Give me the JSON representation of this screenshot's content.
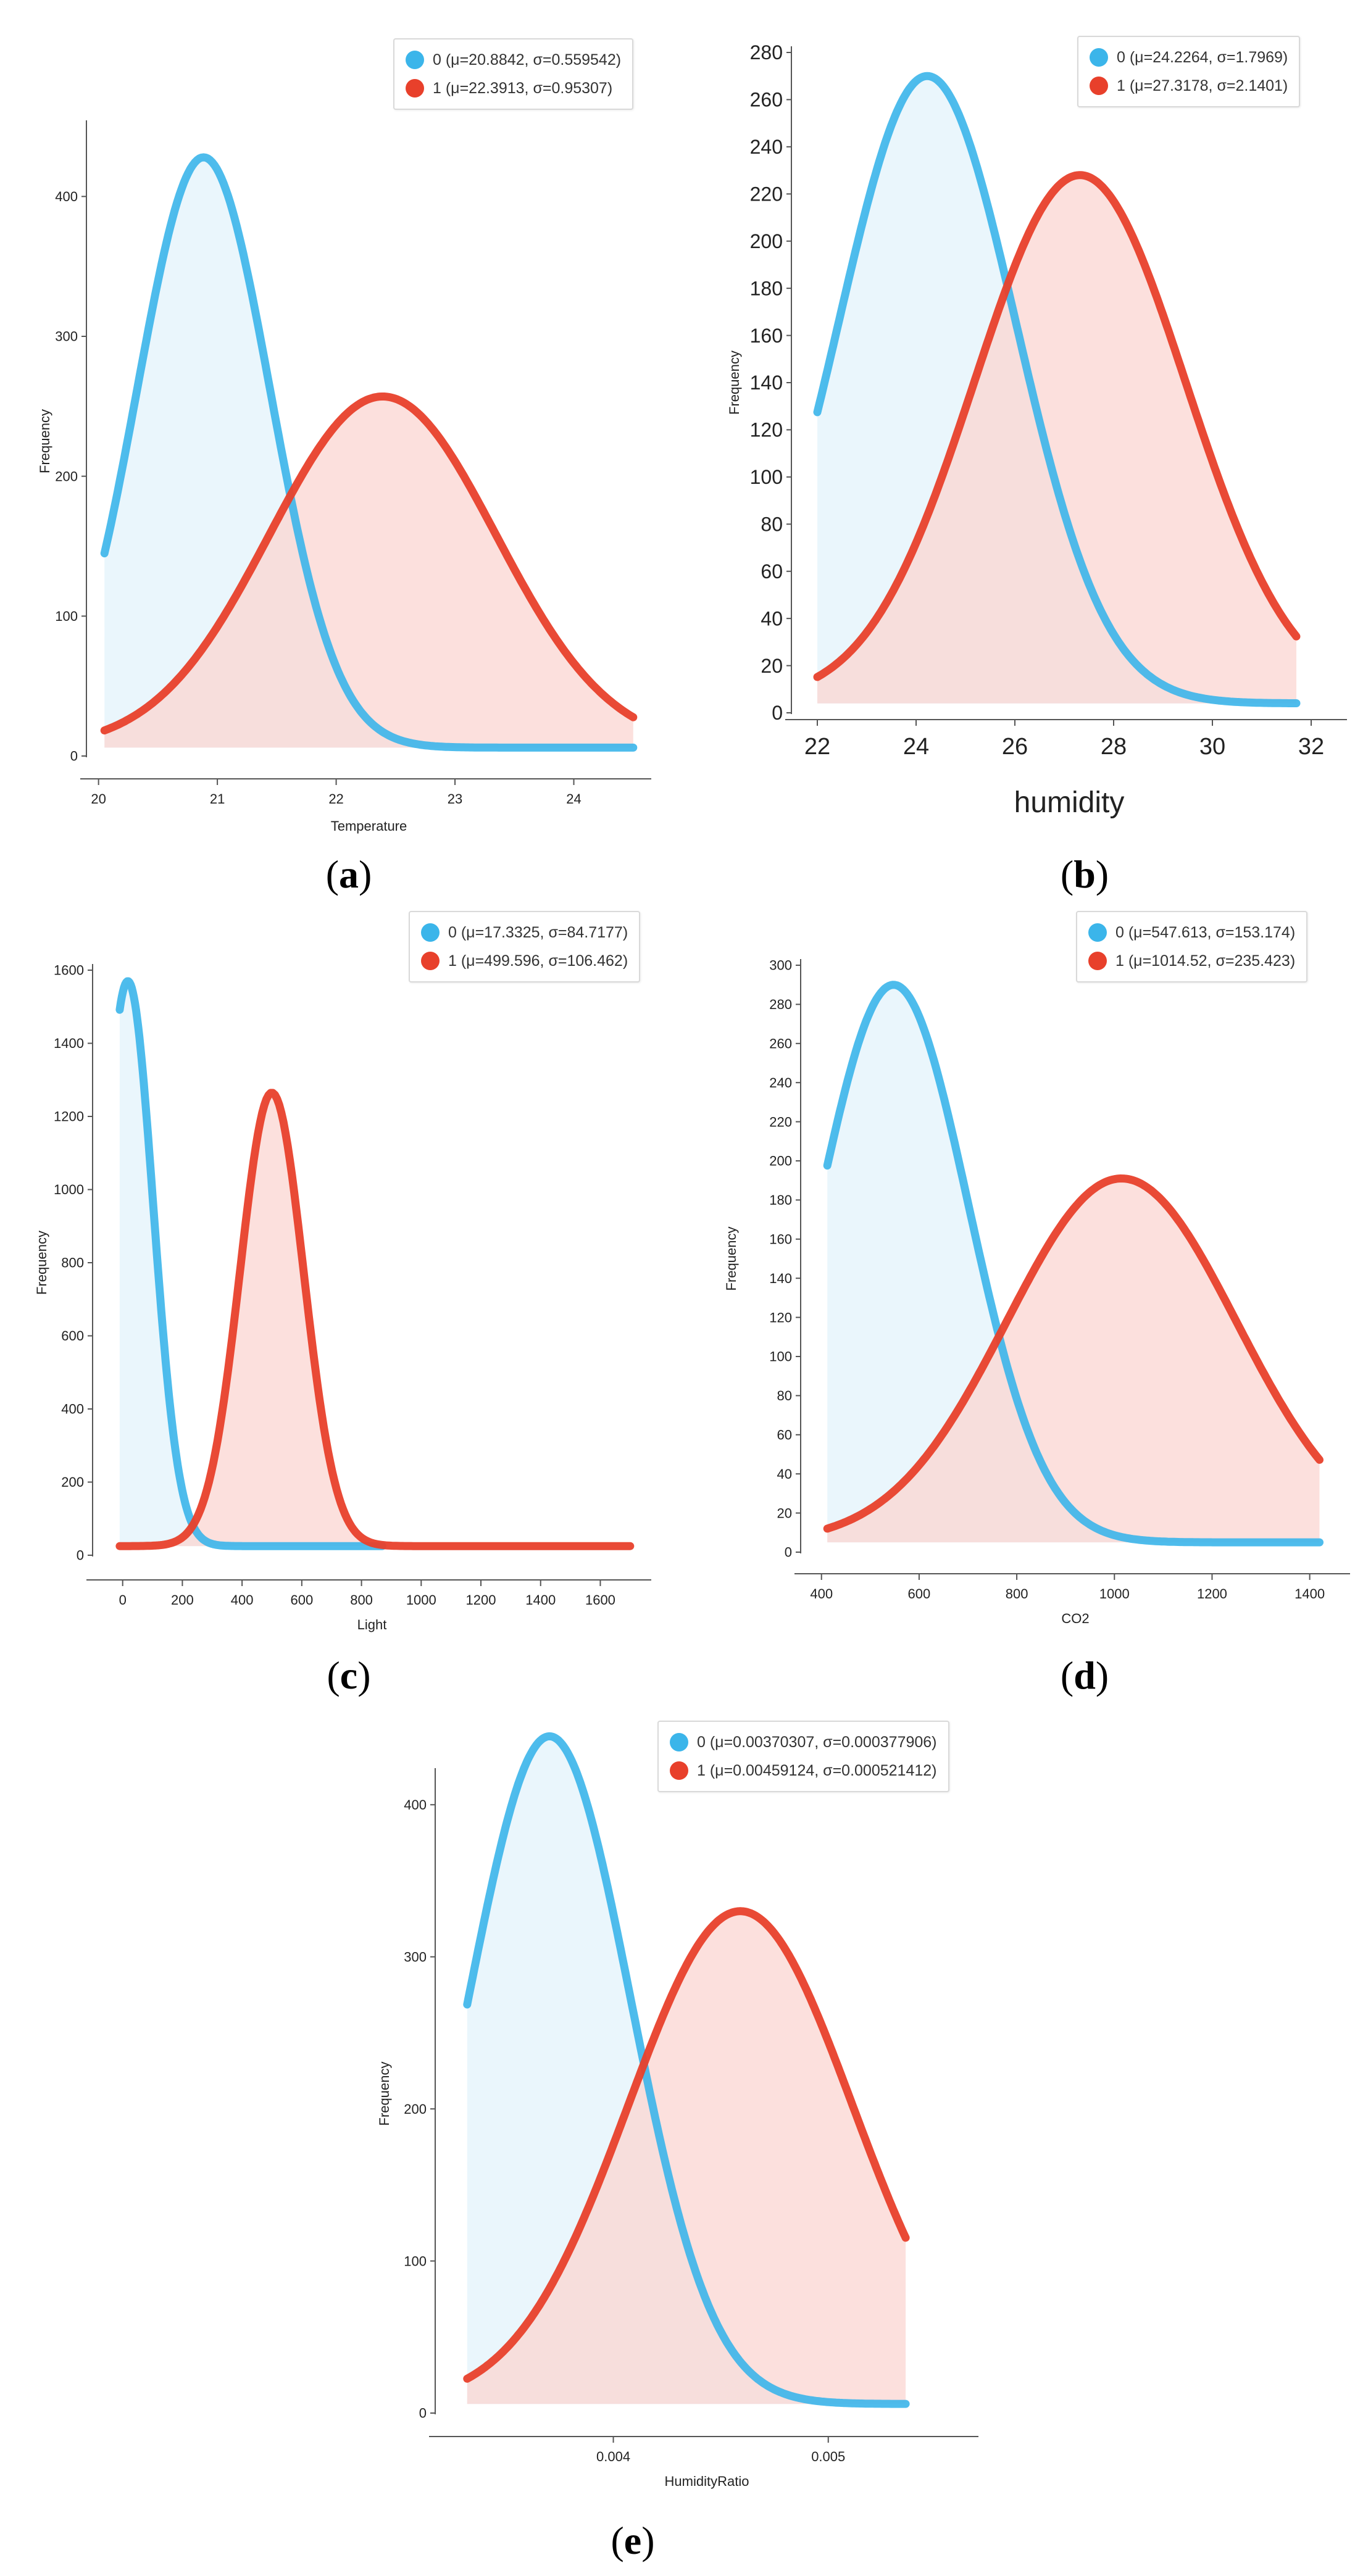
{
  "colors": {
    "class0": "#3bb5ea",
    "class1": "#e8402b",
    "fill0": "#e6f5fc",
    "fill1": "#fbd6d2"
  },
  "chart_data": [
    {
      "panel": "a",
      "type": "line",
      "xlabel": "Temperature",
      "ylabel": "Frequency",
      "xlim": [
        19.95,
        24.6
      ],
      "ylim": [
        0,
        450
      ],
      "xticks": [
        20,
        21,
        22,
        23,
        24
      ],
      "yticks": [
        0,
        100,
        200,
        300,
        400
      ],
      "series": [
        {
          "name": "0",
          "legend": "0 (μ=20.8842, σ=0.559542)",
          "mu": 20.8842,
          "sigma": 0.559542,
          "peak": 428,
          "floor": 6,
          "x_range": [
            20.05,
            24.5
          ]
        },
        {
          "name": "1",
          "legend": "1 (μ=22.3913, σ=0.95307)",
          "mu": 22.3913,
          "sigma": 0.95307,
          "peak": 257,
          "floor": 6,
          "x_range": [
            20.05,
            24.5
          ]
        }
      ]
    },
    {
      "panel": "b",
      "type": "line",
      "xlabel": "humidity",
      "ylabel": "Frequency",
      "xlim": [
        21.6,
        32.6
      ],
      "ylim": [
        0,
        280
      ],
      "xticks": [
        22,
        24,
        26,
        28,
        30,
        32
      ],
      "yticks": [
        0,
        20,
        40,
        60,
        80,
        100,
        120,
        140,
        160,
        180,
        200,
        220,
        240,
        260,
        280
      ],
      "series": [
        {
          "name": "0",
          "legend": "0 (μ=24.2264, σ=1.7969)",
          "mu": 24.2264,
          "sigma": 1.7969,
          "peak": 270,
          "floor": 4,
          "x_range": [
            22.0,
            31.7
          ]
        },
        {
          "name": "1",
          "legend": "1 (μ=27.3178, σ=2.1401)",
          "mu": 27.3178,
          "sigma": 2.1401,
          "peak": 228,
          "floor": 5,
          "x_range": [
            22.0,
            31.7
          ]
        }
      ]
    },
    {
      "panel": "c",
      "type": "line",
      "xlabel": "Light",
      "ylabel": "Frequency",
      "xlim": [
        -80,
        1750
      ],
      "ylim": [
        0,
        1600
      ],
      "xticks": [
        0,
        200,
        400,
        600,
        800,
        1000,
        1200,
        1400,
        1600
      ],
      "yticks": [
        0,
        200,
        400,
        600,
        800,
        1000,
        1200,
        1400,
        1600
      ],
      "series": [
        {
          "name": "0",
          "legend": "0 (μ=17.3325, σ=84.7177)",
          "mu": 17.3325,
          "sigma": 84.7177,
          "peak": 1570,
          "floor": 25,
          "x_range": [
            -10,
            870
          ]
        },
        {
          "name": "1",
          "legend": "1 (μ=499.596, σ=106.462)",
          "mu": 499.596,
          "sigma": 106.462,
          "peak": 1265,
          "floor": 25,
          "x_range": [
            -10,
            1700
          ]
        }
      ]
    },
    {
      "panel": "d",
      "type": "line",
      "xlabel": "CO2",
      "ylabel": "Frequency",
      "xlim": [
        370,
        1470
      ],
      "ylim": [
        0,
        300
      ],
      "xticks": [
        400,
        600,
        800,
        1000,
        1200,
        1400
      ],
      "yticks": [
        0,
        20,
        40,
        60,
        80,
        100,
        120,
        140,
        160,
        180,
        200,
        220,
        240,
        260,
        280,
        300
      ],
      "series": [
        {
          "name": "0",
          "legend": "0 (μ=547.613, σ=153.174)",
          "mu": 547.613,
          "sigma": 153.174,
          "peak": 290,
          "floor": 5,
          "x_range": [
            412,
            1420
          ]
        },
        {
          "name": "1",
          "legend": "1 (μ=1014.52, σ=235.423)",
          "mu": 1014.52,
          "sigma": 235.423,
          "peak": 191,
          "floor": 5,
          "x_range": [
            412,
            1420
          ]
        }
      ]
    },
    {
      "panel": "e",
      "type": "line",
      "xlabel": "HumidityRatio",
      "ylabel": "Frequency",
      "xlim": [
        0.0032,
        0.00567
      ],
      "ylim": [
        0,
        420
      ],
      "xticks": [
        0.004,
        0.005
      ],
      "yticks": [
        0,
        100,
        200,
        300,
        400
      ],
      "series": [
        {
          "name": "0",
          "legend": "0 (μ=0.00370307, σ=0.000377906)",
          "mu": 0.00370307,
          "sigma": 0.000377906,
          "peak": 445,
          "floor": 6,
          "x_range": [
            0.00332,
            0.00536
          ]
        },
        {
          "name": "1",
          "legend": "1 (μ=0.00459124, σ=0.000521412)",
          "mu": 0.00459124,
          "sigma": 0.000521412,
          "peak": 330,
          "floor": 6,
          "x_range": [
            0.00332,
            0.00536
          ]
        }
      ]
    }
  ],
  "panel_labels": [
    {
      "open": "(",
      "letter": "a",
      "close": ")"
    },
    {
      "open": "(",
      "letter": "b",
      "close": ")"
    },
    {
      "open": "(",
      "letter": "c",
      "close": ")"
    },
    {
      "open": "(",
      "letter": "d",
      "close": ")"
    },
    {
      "open": "(",
      "letter": "e",
      "close": ")"
    }
  ]
}
